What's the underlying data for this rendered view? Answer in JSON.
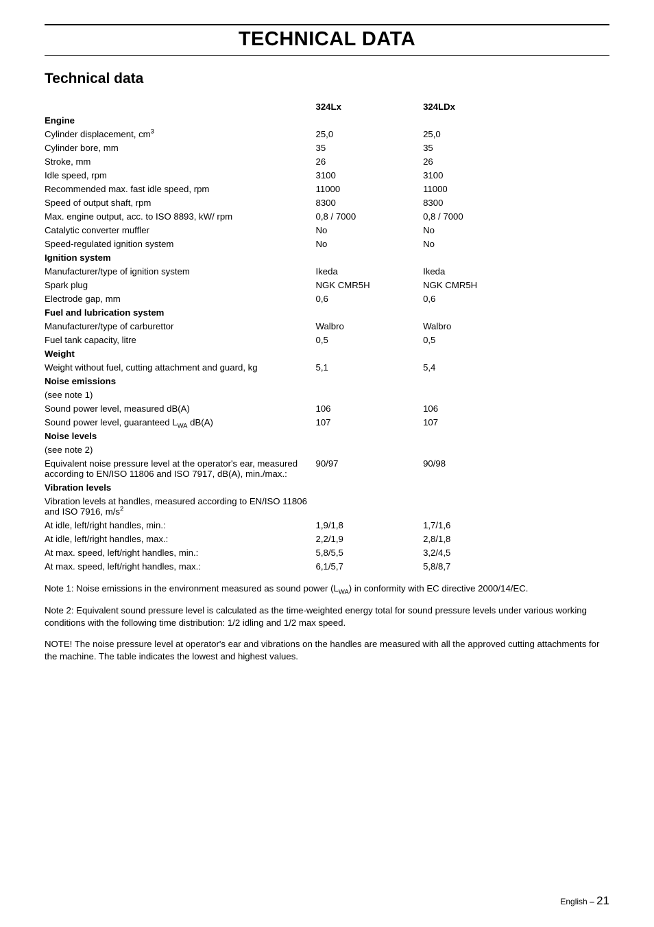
{
  "page_title": "TECHNICAL DATA",
  "section_title": "Technical data",
  "columns": {
    "h1": "324Lx",
    "h2": "324LDx"
  },
  "rows": [
    {
      "type": "header",
      "label": "Engine"
    },
    {
      "type": "data",
      "label": "Cylinder displacement, cm",
      "sup": "3",
      "c1": "25,0",
      "c2": "25,0"
    },
    {
      "type": "data",
      "label": "Cylinder bore, mm",
      "c1": "35",
      "c2": "35"
    },
    {
      "type": "data",
      "label": "Stroke, mm",
      "c1": "26",
      "c2": "26"
    },
    {
      "type": "data",
      "label": "Idle speed, rpm",
      "c1": "3100",
      "c2": "3100"
    },
    {
      "type": "data",
      "label": "Recommended max. fast idle speed, rpm",
      "c1": "11000",
      "c2": "11000"
    },
    {
      "type": "data",
      "label": "Speed of output shaft, rpm",
      "c1": "8300",
      "c2": "8300"
    },
    {
      "type": "data",
      "label": "Max. engine output, acc. to ISO 8893, kW/ rpm",
      "c1": "0,8 / 7000",
      "c2": "0,8 / 7000"
    },
    {
      "type": "data",
      "label": "Catalytic converter muffler",
      "c1": "No",
      "c2": "No"
    },
    {
      "type": "data",
      "label": "Speed-regulated ignition system",
      "c1": "No",
      "c2": "No"
    },
    {
      "type": "header",
      "label": "Ignition system"
    },
    {
      "type": "data",
      "label": "Manufacturer/type of ignition system",
      "c1": "Ikeda",
      "c2": "Ikeda"
    },
    {
      "type": "data",
      "label": "Spark plug",
      "c1": "NGK CMR5H",
      "c2": "NGK CMR5H"
    },
    {
      "type": "data",
      "label": "Electrode gap, mm",
      "c1": "0,6",
      "c2": "0,6"
    },
    {
      "type": "header",
      "label": "Fuel and lubrication system"
    },
    {
      "type": "data",
      "label": "Manufacturer/type of carburettor",
      "c1": "Walbro",
      "c2": "Walbro"
    },
    {
      "type": "data",
      "label": "Fuel tank capacity, litre",
      "c1": "0,5",
      "c2": "0,5"
    },
    {
      "type": "header",
      "label": "Weight"
    },
    {
      "type": "data",
      "label": "Weight without fuel, cutting attachment and guard, kg",
      "c1": "5,1",
      "c2": "5,4"
    },
    {
      "type": "header",
      "label": "Noise emissions"
    },
    {
      "type": "note",
      "label": "(see note 1)"
    },
    {
      "type": "data",
      "label": "Sound power level, measured dB(A)",
      "c1": "106",
      "c2": "106"
    },
    {
      "type": "lwa",
      "label_pre": "Sound power level, guaranteed L",
      "label_sub": "WA",
      "label_post": " dB(A)",
      "c1": "107",
      "c2": "107"
    },
    {
      "type": "header",
      "label": "Noise levels"
    },
    {
      "type": "note",
      "label": "(see note 2)"
    },
    {
      "type": "data",
      "label": "Equivalent noise pressure level at the operator's ear, measured according to EN/ISO 11806 and ISO 7917, dB(A), min./max.:",
      "c1": "90/97",
      "c2": "90/98"
    },
    {
      "type": "header",
      "label": "Vibration levels"
    },
    {
      "type": "vib",
      "label_pre": "Vibration levels at handles, measured according to EN/ISO 11806 and ISO 7916, m/s",
      "sup": "2"
    },
    {
      "type": "data",
      "label": "At idle, left/right handles, min.:",
      "c1": "1,9/1,8",
      "c2": "1,7/1,6"
    },
    {
      "type": "data",
      "label": "At idle, left/right handles, max.:",
      "c1": "2,2/1,9",
      "c2": "2,8/1,8"
    },
    {
      "type": "data",
      "label": "At max. speed, left/right handles, min.:",
      "c1": "5,8/5,5",
      "c2": "3,2/4,5"
    },
    {
      "type": "data",
      "label": "At max. speed, left/right handles, max.:",
      "c1": "6,1/5,7",
      "c2": "5,8/8,7"
    }
  ],
  "notes": {
    "n1_pre": "Note 1: Noise emissions in the environment measured as sound power (L",
    "n1_sub": "WA",
    "n1_post": ") in conformity with EC directive 2000/14/EC.",
    "n2": "Note 2: Equivalent sound pressure level is calculated as the time-weighted energy total for sound pressure levels under various working conditions with the following time distribution: 1/2 idling and 1/2 max speed.",
    "n3": "NOTE!   The noise pressure level at operator's ear and vibrations on the handles are measured with all the approved cutting attachments for the machine. The table indicates the lowest  and highest values."
  },
  "footer": {
    "lang": "English",
    "dash": " – ",
    "page": "21"
  }
}
